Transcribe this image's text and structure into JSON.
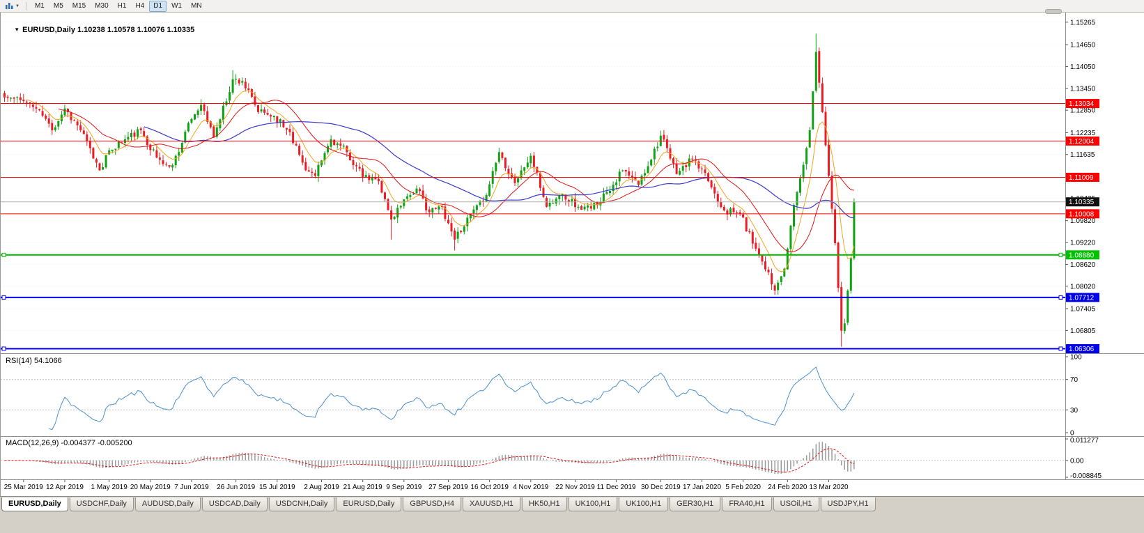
{
  "toolbar": {
    "timeframes": [
      "M1",
      "M5",
      "M15",
      "M30",
      "H1",
      "H4",
      "D1",
      "W1",
      "MN"
    ],
    "active_timeframe": "D1"
  },
  "icons": {
    "collapse_arrow": "▼",
    "dropdown_arrow": "▼"
  },
  "chart_data": {
    "type": "candlestick",
    "symbol": "EURUSD",
    "timeframe": "Daily",
    "header": "EURUSD,Daily 1.10238 1.10578 1.10076 1.10335",
    "ohlc": {
      "open": 1.10238,
      "high": 1.10578,
      "low": 1.10076,
      "close": 1.10335
    },
    "candles": 269,
    "seed": 11,
    "noise": [
      0.0022,
      0.0008
    ],
    "low_noise_from": 249,
    "price_range": [
      1.062,
      1.1553
    ],
    "close_anchors": [
      [
        0,
        1.132
      ],
      [
        6,
        1.131
      ],
      [
        11,
        1.1285
      ],
      [
        15,
        1.123
      ],
      [
        19,
        1.129
      ],
      [
        24,
        1.123
      ],
      [
        30,
        1.112
      ],
      [
        33,
        1.1175
      ],
      [
        38,
        1.1205
      ],
      [
        43,
        1.123
      ],
      [
        48,
        1.1155
      ],
      [
        52,
        1.113
      ],
      [
        55,
        1.117
      ],
      [
        58,
        1.125
      ],
      [
        62,
        1.13
      ],
      [
        66,
        1.121
      ],
      [
        72,
        1.137
      ],
      [
        75,
        1.1365
      ],
      [
        80,
        1.128
      ],
      [
        85,
        1.127
      ],
      [
        90,
        1.1225
      ],
      [
        95,
        1.112
      ],
      [
        98,
        1.1105
      ],
      [
        103,
        1.1205
      ],
      [
        108,
        1.117
      ],
      [
        113,
        1.11
      ],
      [
        118,
        1.109
      ],
      [
        122,
        1.0985
      ],
      [
        126,
        1.104
      ],
      [
        130,
        1.107
      ],
      [
        134,
        1.1005
      ],
      [
        138,
        1.102
      ],
      [
        142,
        1.093
      ],
      [
        146,
        1.099
      ],
      [
        151,
        1.1035
      ],
      [
        156,
        1.117
      ],
      [
        161,
        1.1085
      ],
      [
        166,
        1.116
      ],
      [
        171,
        1.102
      ],
      [
        176,
        1.1055
      ],
      [
        181,
        1.102
      ],
      [
        185,
        1.1015
      ],
      [
        190,
        1.106
      ],
      [
        195,
        1.112
      ],
      [
        200,
        1.108
      ],
      [
        207,
        1.1215
      ],
      [
        212,
        1.111
      ],
      [
        217,
        1.115
      ],
      [
        222,
        1.109
      ],
      [
        227,
        1.101
      ],
      [
        232,
        1.1
      ],
      [
        237,
        1.0905
      ],
      [
        241,
        1.084
      ],
      [
        243,
        1.079
      ],
      [
        246,
        1.085
      ],
      [
        249,
        1.1025
      ],
      [
        252,
        1.1135
      ],
      [
        254,
        1.123
      ],
      [
        256,
        1.1445
      ],
      [
        258,
        1.128
      ],
      [
        260,
        1.1105
      ],
      [
        262,
        1.092
      ],
      [
        264,
        1.068
      ],
      [
        265,
        1.07
      ],
      [
        266,
        1.079
      ],
      [
        267,
        1.088
      ],
      [
        268,
        1.10335
      ]
    ],
    "wick_overrides": [
      {
        "i": 72,
        "high": 1.1395
      },
      {
        "i": 122,
        "low": 1.093
      },
      {
        "i": 142,
        "low": 1.09
      },
      {
        "i": 243,
        "low": 1.0778
      },
      {
        "i": 256,
        "high": 1.1495
      },
      {
        "i": 264,
        "low": 1.0636
      }
    ],
    "moving_averages": [
      {
        "period": 8,
        "type": "ema",
        "color": "#f2a51c",
        "width": 1
      },
      {
        "period": 18,
        "type": "sma",
        "color": "#e11414",
        "width": 1
      },
      {
        "period": 45,
        "type": "sma",
        "color": "#3939cf",
        "width": 1.2
      }
    ],
    "price_axis_ticks": [
      "1.15265",
      "1.14650",
      "1.14050",
      "1.13450",
      "1.12850",
      "1.12235",
      "1.11635",
      "1.11035",
      "1.10435",
      "1.09820",
      "1.09220",
      "1.08620",
      "1.08020",
      "1.07405",
      "1.06805"
    ],
    "hlines": [
      {
        "price": 1.13034,
        "label": "1.13034",
        "color": "#ff0000",
        "width": 1,
        "handles": false
      },
      {
        "price": 1.12004,
        "label": "1.12004",
        "color": "#ff0000",
        "width": 1,
        "handles": false
      },
      {
        "price": 1.11009,
        "label": "1.11009",
        "color": "#ff0000",
        "width": 1,
        "handles": false
      },
      {
        "price": 1.10008,
        "label": "1.10008",
        "color": "#ff0000",
        "width": 1,
        "handles": false
      },
      {
        "price": 1.0888,
        "label": "1.08880",
        "color": "#00c000",
        "width": 2,
        "handles": true
      },
      {
        "price": 1.07712,
        "label": "1.07712",
        "color": "#0000e6",
        "width": 2,
        "handles": true
      },
      {
        "price": 1.06306,
        "label": "1.06306",
        "color": "#0000e6",
        "width": 2,
        "handles": true
      }
    ],
    "current_price": {
      "value": 1.10335,
      "label": "1.10335",
      "tag_bg": "#111111"
    },
    "date_labels": [
      "25 Mar 2019",
      "12 Apr 2019",
      "1 May 2019",
      "20 May 2019",
      "7 Jun 2019",
      "26 Jun 2019",
      "15 Jul 2019",
      "2 Aug 2019",
      "21 Aug 2019",
      "9 Sep 2019",
      "27 Sep 2019",
      "16 Oct 2019",
      "4 Nov 2019",
      "22 Nov 2019",
      "11 Dec 2019",
      "30 Dec 2019",
      "17 Jan 2020",
      "5 Feb 2020",
      "24 Feb 2020",
      "13 Mar 2020"
    ],
    "rsi": {
      "header": "RSI(14) 54.1066",
      "period": 14,
      "value": 54.1066,
      "levels": [
        70,
        30
      ],
      "axis_ticks": [
        "100",
        "70",
        "30",
        "0"
      ],
      "color": "#4a8fce"
    },
    "macd": {
      "header": "MACD(12,26,9) -0.004377 -0.005200",
      "fast": 12,
      "slow": 26,
      "signal": 9,
      "main_value": -0.004377,
      "signal_value": -0.0052,
      "range": [
        -0.008845,
        0.011277
      ],
      "axis_ticks": [
        "0.011277",
        "0.00",
        "-0.008845"
      ],
      "hist_color": "#9a9a9a",
      "signal_color": "#e11414"
    },
    "colors": {
      "up": "#0fa314",
      "down": "#ec1c24",
      "bid_line": "#ababab",
      "grid": "#ebebeb",
      "panel_border": "#8e8e8e",
      "axis_text": "#000000"
    }
  },
  "tabs": {
    "items": [
      {
        "label": "EURUSD,Daily",
        "active": true
      },
      {
        "label": "USDCHF,Daily",
        "active": false
      },
      {
        "label": "AUDUSD,Daily",
        "active": false
      },
      {
        "label": "USDCAD,Daily",
        "active": false
      },
      {
        "label": "USDCNH,Daily",
        "active": false
      },
      {
        "label": "EURUSD,Daily",
        "active": false
      },
      {
        "label": "GBPUSD,H4",
        "active": false
      },
      {
        "label": "XAUUSD,H1",
        "active": false
      },
      {
        "label": "HK50,H1",
        "active": false
      },
      {
        "label": "UK100,H1",
        "active": false
      },
      {
        "label": "UK100,H1",
        "active": false
      },
      {
        "label": "GER30,H1",
        "active": false
      },
      {
        "label": "FRA40,H1",
        "active": false
      },
      {
        "label": "USOil,H1",
        "active": false
      },
      {
        "label": "USDJPY,H1",
        "active": false
      }
    ]
  }
}
